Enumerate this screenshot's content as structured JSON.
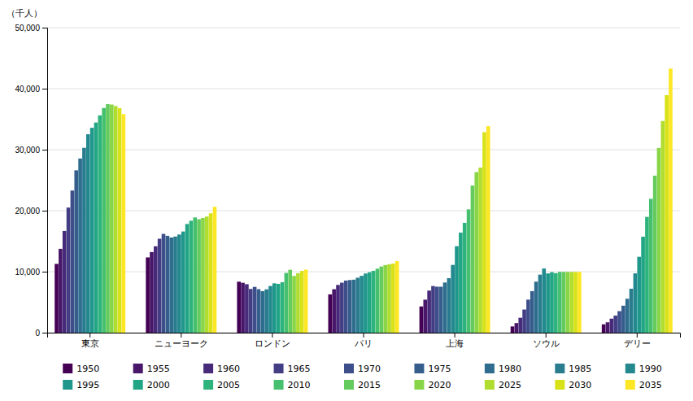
{
  "chart_data": {
    "type": "bar",
    "ylabel": "（千人）",
    "categories": [
      "東京",
      "ニューヨーク",
      "ロンドン",
      "パリ",
      "上海",
      "ソウル",
      "デリー"
    ],
    "series": [
      {
        "name": "1950",
        "values": [
          11274,
          12338,
          8361,
          6283,
          4301,
          1021,
          1369
        ]
      },
      {
        "name": "1955",
        "values": [
          13748,
          13219,
          8181,
          7124,
          5406,
          1574,
          1700
        ]
      },
      {
        "name": "1960",
        "values": [
          16679,
          14164,
          7943,
          7824,
          6900,
          2445,
          2300
        ]
      },
      {
        "name": "1965",
        "values": [
          20509,
          15399,
          7168,
          8195,
          7646,
          3794,
          2800
        ]
      },
      {
        "name": "1970",
        "values": [
          23298,
          16191,
          7507,
          8540,
          7537,
          5416,
          3531
        ]
      },
      {
        "name": "1975",
        "values": [
          26615,
          15880,
          7128,
          8630,
          7534,
          6809,
          4426
        ]
      },
      {
        "name": "1980",
        "values": [
          28549,
          15601,
          6805,
          8683,
          8219,
          8364,
          5558
        ]
      },
      {
        "name": "1985",
        "values": [
          30304,
          15755,
          7103,
          9002,
          8936,
          9514,
          7206
        ]
      },
      {
        "name": "1990",
        "values": [
          32530,
          16086,
          7651,
          9318,
          11110,
          10520,
          9726
        ]
      },
      {
        "name": "1995",
        "values": [
          33587,
          16581,
          8089,
          9695,
          14173,
          9714,
          12441
        ]
      },
      {
        "name": "2000",
        "values": [
          34450,
          17814,
          7999,
          9904,
          16408,
          9917,
          15732
        ]
      },
      {
        "name": "2005",
        "values": [
          35622,
          18351,
          8278,
          10142,
          18000,
          9762,
          18978
        ]
      },
      {
        "name": "2010",
        "values": [
          36834,
          18897,
          9787,
          10485,
          20217,
          9963,
          21935
        ]
      },
      {
        "name": "2015",
        "values": [
          37468,
          18604,
          10313,
          10843,
          24114,
          9963,
          25735
        ]
      },
      {
        "name": "2020",
        "values": [
          37393,
          18804,
          9304,
          11079,
          26317,
          9963,
          30290
        ]
      },
      {
        "name": "2025",
        "values": [
          37156,
          19036,
          9748,
          11217,
          27059,
          9963,
          34700
        ]
      },
      {
        "name": "2030",
        "values": [
          36801,
          19561,
          10118,
          11337,
          32870,
          9963,
          38940
        ]
      },
      {
        "name": "2035",
        "values": [
          35830,
          20629,
          10340,
          11743,
          33854,
          9963,
          43295
        ]
      }
    ],
    "ylim": [
      0,
      50000
    ],
    "yticks": [
      0,
      {
        "value": 10000,
        "label": "10,000"
      },
      {
        "value": 20000,
        "label": "20,000"
      },
      {
        "value": 30000,
        "label": "30,000"
      },
      {
        "value": 40000,
        "label": "40,000"
      },
      {
        "value": 50000,
        "label": "50,000"
      }
    ],
    "grid": true,
    "legend": "bottom"
  }
}
